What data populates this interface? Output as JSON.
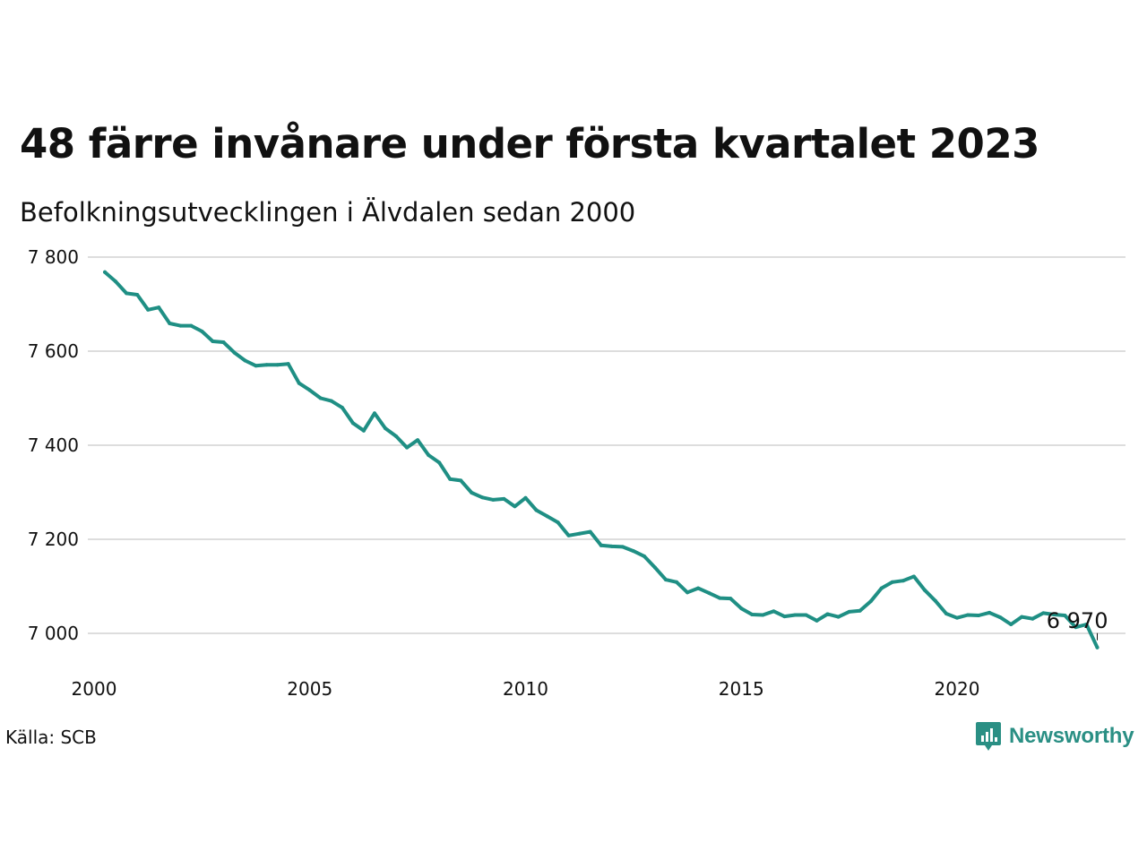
{
  "header": {
    "title": "48 färre invånare under första kvartalet 2023",
    "subtitle": "Befolkningsutvecklingen i Älvdalen sedan 2000"
  },
  "footer": {
    "source": "Källa: SCB",
    "brand": "Newsworthy"
  },
  "colors": {
    "line": "#1f8f84",
    "grid": "#dddddd",
    "brand": "#2a8f84"
  },
  "chart_data": {
    "type": "line",
    "title": "48 färre invånare under första kvartalet 2023",
    "subtitle": "Befolkningsutvecklingen i Älvdalen sedan 2000",
    "ylim": [
      6940,
      7830
    ],
    "y_ticks": [
      7000,
      7200,
      7400,
      7600,
      7800
    ],
    "y_tick_labels": [
      "7 000",
      "7 200",
      "7 400",
      "7 600",
      "7 800"
    ],
    "x_ticks": [
      2000,
      2005,
      2010,
      2015,
      2020
    ],
    "x_tick_labels": [
      "2000",
      "2005",
      "2010",
      "2015",
      "2020"
    ],
    "grid": true,
    "legend": "none",
    "annotation": {
      "text": "6 970",
      "x": 2023.25,
      "y": 6970
    },
    "series": [
      {
        "x": [
          2000.25,
          2000.5,
          2000.75,
          2001,
          2001.25,
          2001.5,
          2001.75,
          2002,
          2002.25,
          2002.5,
          2002.75,
          2003,
          2003.25,
          2003.5,
          2003.75,
          2004,
          2004.25,
          2004.5,
          2004.75,
          2005,
          2005.25,
          2005.5,
          2005.75,
          2006,
          2006.25,
          2006.5,
          2006.75,
          2007,
          2007.25,
          2007.5,
          2007.75,
          2008,
          2008.25,
          2008.5,
          2008.75,
          2009,
          2009.25,
          2009.5,
          2009.75,
          2010,
          2010.25,
          2010.5,
          2010.75,
          2011,
          2011.25,
          2011.5,
          2011.75,
          2012,
          2012.25,
          2012.5,
          2012.75,
          2013,
          2013.25,
          2013.5,
          2013.75,
          2014,
          2014.25,
          2014.5,
          2014.75,
          2015,
          2015.25,
          2015.5,
          2015.75,
          2016,
          2016.25,
          2016.5,
          2016.75,
          2017,
          2017.25,
          2017.5,
          2017.75,
          2018,
          2018.25,
          2018.5,
          2018.75,
          2019,
          2019.25,
          2019.5,
          2019.75,
          2020,
          2020.25,
          2020.5,
          2020.75,
          2021,
          2021.25,
          2021.5,
          2021.75,
          2022,
          2022.25,
          2022.5,
          2022.75,
          2023,
          2023.25
        ],
        "values": [
          7768,
          7748,
          7723,
          7720,
          7688,
          7693,
          7659,
          7654,
          7654,
          7642,
          7621,
          7619,
          7597,
          7580,
          7569,
          7571,
          7571,
          7573,
          7532,
          7517,
          7500,
          7494,
          7480,
          7447,
          7431,
          7468,
          7436,
          7419,
          7395,
          7411,
          7379,
          7363,
          7328,
          7325,
          7299,
          7289,
          7284,
          7286,
          7270,
          7288,
          7262,
          7249,
          7236,
          7208,
          7212,
          7216,
          7187,
          7185,
          7184,
          7175,
          7164,
          7140,
          7114,
          7109,
          7087,
          7096,
          7086,
          7075,
          7074,
          7053,
          7040,
          7039,
          7047,
          7036,
          7039,
          7039,
          7027,
          7041,
          7035,
          7046,
          7048,
          7068,
          7096,
          7109,
          7112,
          7121,
          7092,
          7069,
          7042,
          7033,
          7039,
          7038,
          7044,
          7034,
          7019,
          7035,
          7031,
          7043,
          7040,
          7038,
          7013,
          7019,
          6970
        ]
      }
    ]
  }
}
